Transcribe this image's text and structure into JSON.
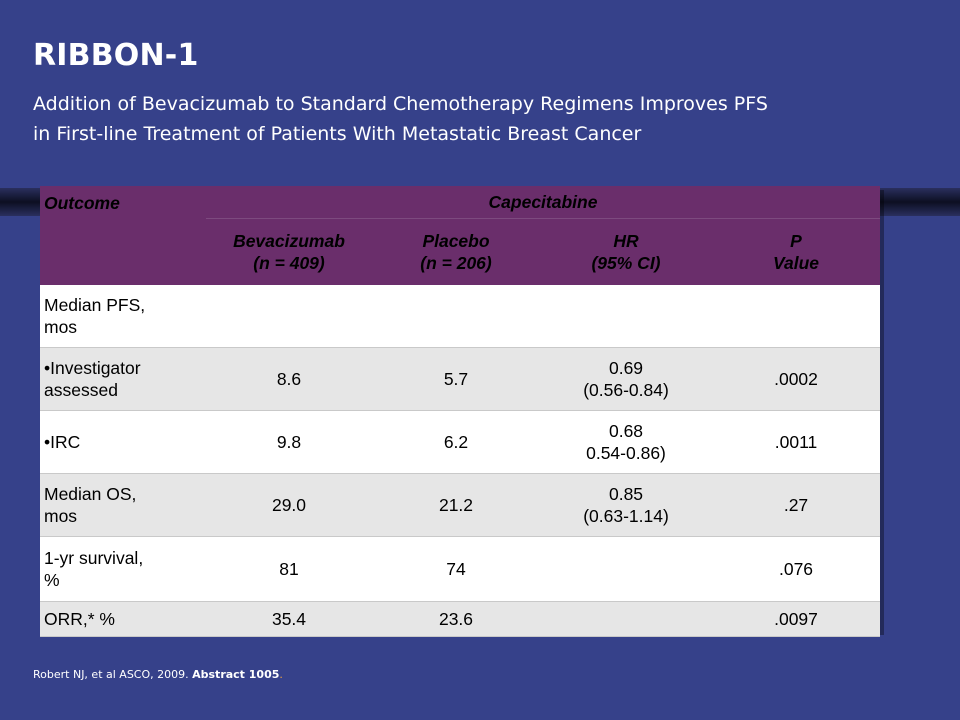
{
  "slide": {
    "title": "RIBBON-1",
    "subtitle_line1": "Addition of Bevacizumab to Standard Chemotherapy Regimens Improves PFS",
    "subtitle_line2": "in First-line Treatment of Patients With Metastatic Breast Cancer"
  },
  "table": {
    "header": {
      "outcome": "Outcome",
      "group": "Capecitabine",
      "bev_name": "Bevacizumab",
      "bev_n": "(n = 409)",
      "pla_name": "Placebo",
      "pla_n": "(n = 206)",
      "hr_name": "HR",
      "hr_ci": "(95% CI)",
      "p_name": "P",
      "p_value": "Value"
    },
    "rows": [
      {
        "label_l1": "Median PFS,",
        "label_l2": "mos",
        "bev": "",
        "pla": "",
        "hr_l1": "",
        "hr_l2": "",
        "p": ""
      },
      {
        "label_l1": "•Investigator",
        "label_l2": "assessed",
        "bev": "8.6",
        "pla": "5.7",
        "hr_l1": "0.69",
        "hr_l2": "(0.56-0.84)",
        "p": ".0002"
      },
      {
        "label_l1": "•IRC",
        "label_l2": "",
        "bev": "9.8",
        "pla": "6.2",
        "hr_l1": "0.68",
        "hr_l2": "0.54-0.86)",
        "p": ".0011"
      },
      {
        "label_l1": "Median OS,",
        "label_l2": "mos",
        "bev": "29.0",
        "pla": "21.2",
        "hr_l1": "0.85",
        "hr_l2": "(0.63-1.14)",
        "p": ".27"
      },
      {
        "label_l1": "1-yr survival,",
        "label_l2": "%",
        "bev": "81",
        "pla": "74",
        "hr_l1": "",
        "hr_l2": "",
        "p": ".076"
      },
      {
        "label_l1": "ORR,* %",
        "label_l2": "",
        "bev": "35.4",
        "pla": "23.6",
        "hr_l1": "",
        "hr_l2": "",
        "p": ".0097"
      }
    ]
  },
  "footnote": {
    "text": "Robert NJ, et al  ASCO, 2009. ",
    "bold": "Abstract 1005",
    "tail": "."
  },
  "colors": {
    "background": "#36418a",
    "header": "#6a2e6b",
    "row_gray": "#e6e6e6",
    "row_white": "#ffffff"
  }
}
